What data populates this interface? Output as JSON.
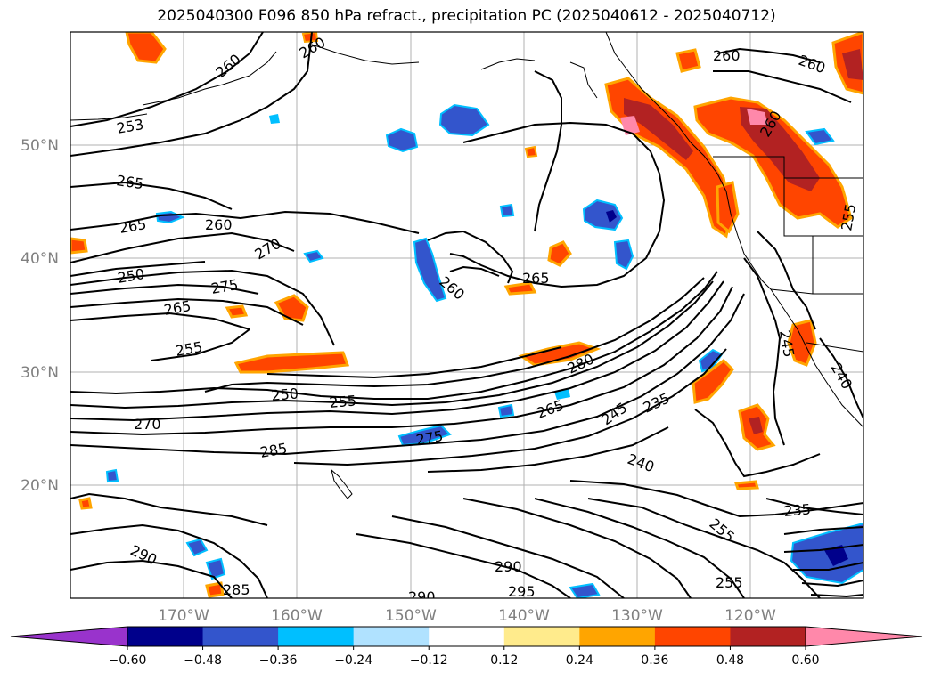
{
  "title": "2025040300 F096 850 hPa refract., precipitation PC (2025040612 - 2025040712)",
  "lat_labels": [
    "50°N",
    "40°N",
    "30°N",
    "20°N"
  ],
  "lon_labels": [
    "170°W",
    "160°W",
    "150°W",
    "140°W",
    "130°W",
    "120°W"
  ],
  "contour_labels": [
    {
      "text": "260"
    },
    {
      "text": "253"
    },
    {
      "text": "265"
    },
    {
      "text": "265"
    },
    {
      "text": "260"
    },
    {
      "text": "270"
    },
    {
      "text": "250"
    },
    {
      "text": "275"
    },
    {
      "text": "265"
    },
    {
      "text": "255"
    },
    {
      "text": "260"
    },
    {
      "text": "265"
    },
    {
      "text": "260"
    },
    {
      "text": "280"
    },
    {
      "text": "250"
    },
    {
      "text": "255"
    },
    {
      "text": "270"
    },
    {
      "text": "265"
    },
    {
      "text": "245"
    },
    {
      "text": "235"
    },
    {
      "text": "275"
    },
    {
      "text": "285"
    },
    {
      "text": "240"
    },
    {
      "text": "235"
    },
    {
      "text": "255"
    },
    {
      "text": "290"
    },
    {
      "text": "290"
    },
    {
      "text": "295"
    },
    {
      "text": "285"
    },
    {
      "text": "290"
    },
    {
      "text": "260"
    },
    {
      "text": "260"
    },
    {
      "text": "255"
    },
    {
      "text": "245"
    },
    {
      "text": "240"
    },
    {
      "text": "255"
    },
    {
      "text": "260"
    }
  ],
  "colorbar": {
    "ticks": [
      "−0.60",
      "−0.48",
      "−0.36",
      "−0.24",
      "−0.12",
      "0.12",
      "0.24",
      "0.36",
      "0.48",
      "0.60"
    ],
    "colors": {
      "under": "#9933cc",
      "bins": [
        "#00008b",
        "#3355cc",
        "#00bfff",
        "#b0e2ff",
        "#ffffff",
        "#ffeb8c",
        "#ffa500",
        "#ff4500",
        "#b22222"
      ],
      "over": "#ff88aa"
    }
  }
}
